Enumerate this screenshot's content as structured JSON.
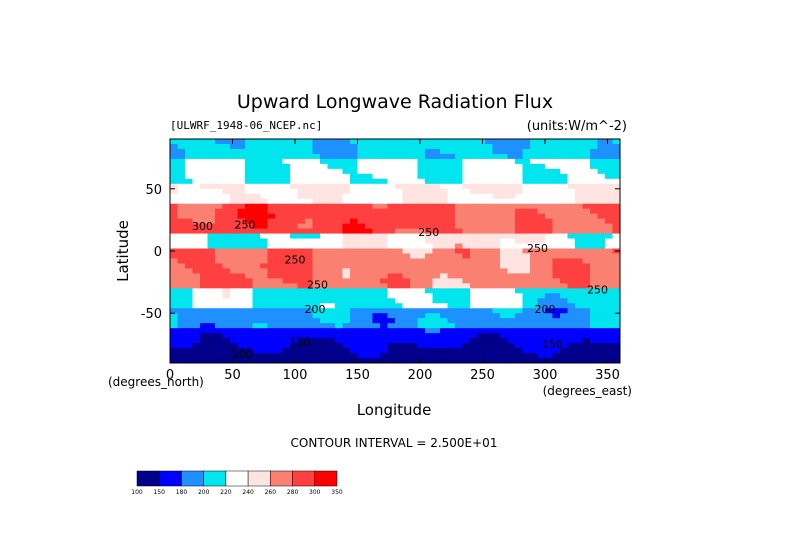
{
  "chart_data": {
    "type": "heatmap",
    "title": "Upward Longwave Radiation Flux",
    "file_label": "[ULWRF_1948-06_NCEP.nc]",
    "units_label": "(units:W/m^-2)",
    "xlabel": "Longitude",
    "ylabel": "Latitude",
    "x_unit_label": "(degrees_east)",
    "y_unit_label": "(degrees_north)",
    "xlim": [
      0,
      360
    ],
    "ylim": [
      -90,
      90
    ],
    "x_ticks": [
      0,
      50,
      100,
      150,
      200,
      250,
      300,
      350
    ],
    "y_ticks": [
      50,
      0,
      -50
    ],
    "contour_interval_text": "CONTOUR INTERVAL = 2.500E+01",
    "colorbar": {
      "levels": [
        "100",
        "150",
        "180",
        "200",
        "220",
        "240",
        "260",
        "280",
        "300",
        "350"
      ],
      "colors": [
        "#00008b",
        "#0000ff",
        "#1e90ff",
        "#00e5ee",
        "#ffffff",
        "#ffe4e1",
        "#fa8072",
        "#ff4040",
        "#ff0000"
      ]
    },
    "contour_labels": [
      {
        "text": "300",
        "lon": 26,
        "lat": 17
      },
      {
        "text": "250",
        "lon": 60,
        "lat": 18
      },
      {
        "text": "250",
        "lon": 100,
        "lat": -10
      },
      {
        "text": "250",
        "lon": 118,
        "lat": -30
      },
      {
        "text": "200",
        "lon": 116,
        "lat": -50
      },
      {
        "text": "200",
        "lon": 300,
        "lat": -50
      },
      {
        "text": "250",
        "lon": 207,
        "lat": 12
      },
      {
        "text": "250",
        "lon": 294,
        "lat": -1
      },
      {
        "text": "250",
        "lon": 342,
        "lat": -34
      },
      {
        "text": "150",
        "lon": 104,
        "lat": -76
      },
      {
        "text": "100",
        "lon": 58,
        "lat": -86
      },
      {
        "text": "150",
        "lon": 306,
        "lat": -78
      }
    ],
    "field_description_bands": [
      {
        "lat": [
          70,
          90
        ],
        "class": "200-220"
      },
      {
        "lat": [
          40,
          70
        ],
        "class": "220-240"
      },
      {
        "lat": [
          15,
          40
        ],
        "class": "280-300"
      },
      {
        "lat": [
          0,
          15
        ],
        "class": "220-240"
      },
      {
        "lat": [
          -30,
          0
        ],
        "class": "260-280"
      },
      {
        "lat": [
          -45,
          -30
        ],
        "class": "200-220"
      },
      {
        "lat": [
          -65,
          -45
        ],
        "class": "180-200"
      },
      {
        "lat": [
          -90,
          -65
        ],
        "class": "100-150"
      }
    ]
  }
}
